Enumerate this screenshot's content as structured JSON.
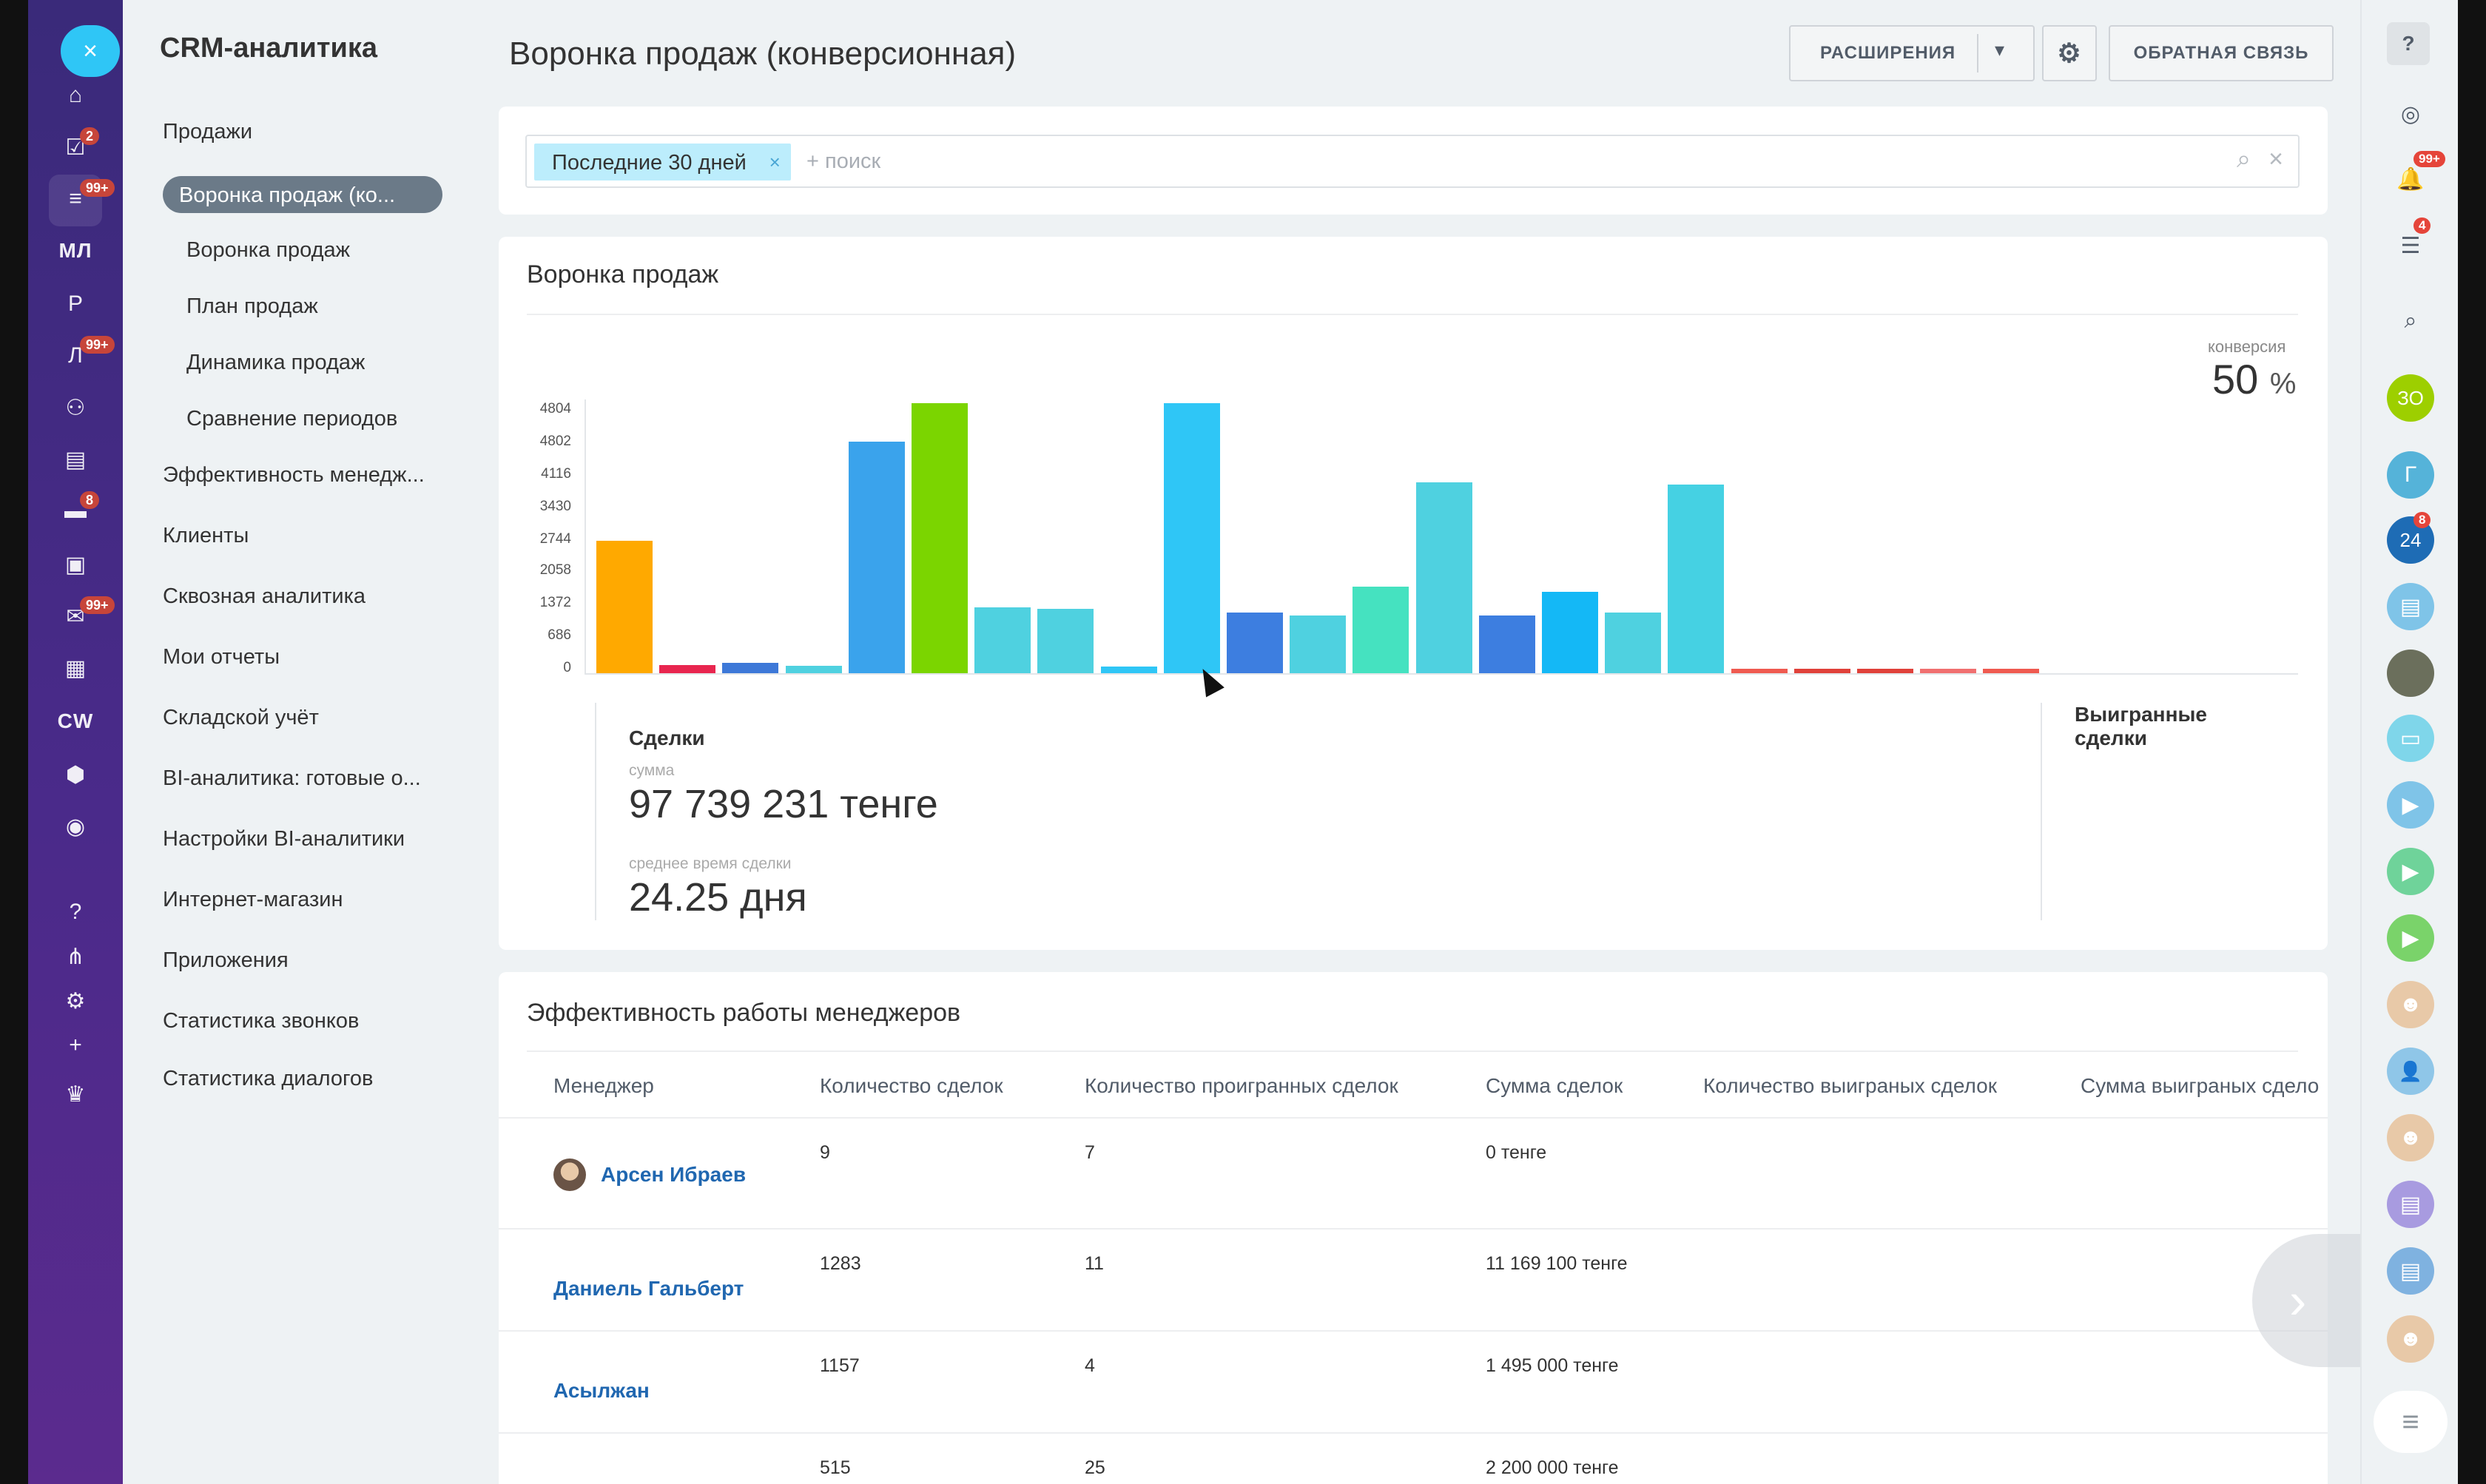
{
  "rail": {
    "close_glyph": "×",
    "items": [
      {
        "name": "home-icon",
        "glyph": "⌂",
        "badge": ""
      },
      {
        "name": "tasks-icon",
        "glyph": "☑",
        "badge": "2"
      },
      {
        "name": "crm-filter-icon",
        "glyph": "≡",
        "badge": "99+"
      },
      {
        "name": "ml-label",
        "glyph": "МЛ",
        "badge": ""
      },
      {
        "name": "r-label",
        "glyph": "Р",
        "badge": ""
      },
      {
        "name": "l-label",
        "glyph": "Л",
        "badge": "99+"
      },
      {
        "name": "crm-icon",
        "glyph": "⚇",
        "badge": ""
      },
      {
        "name": "feed-icon",
        "glyph": "▤",
        "badge": ""
      },
      {
        "name": "chat-icon",
        "glyph": "▬",
        "badge": "8"
      },
      {
        "name": "contact-card-icon",
        "glyph": "▣",
        "badge": ""
      },
      {
        "name": "mail-icon",
        "glyph": "✉",
        "badge": "99+"
      },
      {
        "name": "calendar-icon",
        "glyph": "▦",
        "badge": ""
      },
      {
        "name": "cw-label",
        "glyph": "CW",
        "badge": ""
      },
      {
        "name": "hexagon-icon",
        "glyph": "⬢",
        "badge": ""
      },
      {
        "name": "check-circle-icon",
        "glyph": "◉",
        "badge": ""
      },
      {
        "name": "help-icon",
        "glyph": "?",
        "badge": ""
      },
      {
        "name": "structure-icon",
        "glyph": "⋔",
        "badge": ""
      },
      {
        "name": "settings-icon",
        "glyph": "⚙",
        "badge": ""
      },
      {
        "name": "plus-icon",
        "glyph": "+",
        "badge": ""
      },
      {
        "name": "crown-icon",
        "glyph": "♛",
        "badge": ""
      }
    ]
  },
  "menu": {
    "title": "CRM-аналитика",
    "sales": "Продажи",
    "active": "Воронка продаж (ко...",
    "sub": [
      "Воронка продаж",
      "План продаж",
      "Динамика продаж",
      "Сравнение периодов"
    ],
    "items": [
      "Эффективность менедж...",
      "Клиенты",
      "Сквозная аналитика",
      "Мои отчеты",
      "Складской учёт",
      "BI-аналитика: готовые о...",
      "Настройки BI-аналитики",
      "Интернет-магазин",
      "Приложения",
      "Статистика звонков",
      "Статистика диалогов"
    ]
  },
  "header": {
    "title": "Воронка продаж (конверсионная)",
    "extensions_label": "РАСШИРЕНИЯ",
    "dropdown_glyph": "▾",
    "settings_glyph": "⚙",
    "feedback_label": "ОБРАТНАЯ СВЯЗЬ"
  },
  "filter": {
    "chip_label": "Последние 30 дней",
    "chip_remove": "×",
    "placeholder": "+ поиск",
    "search_glyph": "⌕",
    "clear_glyph": "×"
  },
  "funnel": {
    "title": "Воронка продаж",
    "conversion_label": "конверсия",
    "conversion_value": "50",
    "conversion_unit": "%",
    "deals_label": "Сделки",
    "sum_label": "сумма",
    "sum_value": "97 739 231 тенге",
    "avg_time_label": "среднее время сделки",
    "avg_time_value": "24.25 дня",
    "won_label": "Выигранные сделки"
  },
  "chart_data": {
    "type": "bar",
    "ytick_labels": [
      "4804",
      "4802",
      "4116",
      "3430",
      "2744",
      "2058",
      "1372",
      "686",
      "0"
    ],
    "ylim": [
      0,
      4804
    ],
    "values": [
      2350,
      140,
      180,
      130,
      4120,
      4804,
      1170,
      1150,
      120,
      4804,
      1080,
      1030,
      1540,
      3400,
      1030,
      1450,
      1080,
      3360,
      60,
      50,
      60,
      40,
      60
    ],
    "colors": [
      "#ffa900",
      "#e8264f",
      "#3d78d8",
      "#4fd1e0",
      "#3aa3ec",
      "#7bd500",
      "#4fd1e0",
      "#4fd1e0",
      "#2fc6f6",
      "#2fc6f6",
      "#3d7ee0",
      "#4fd1e0",
      "#45e2c0",
      "#4fd1e0",
      "#3d7ee0",
      "#14b8f6",
      "#4fd1e0",
      "#45d1e3",
      "#ef5a50",
      "#e0413a",
      "#e0413a",
      "#f07070",
      "#ef5a50"
    ]
  },
  "managers": {
    "title": "Эффективность работы менеджеров",
    "columns": [
      "Менеджер",
      "Количество сделок",
      "Количество проигранных сделок",
      "Сумма сделок",
      "Количество выиграных сделок",
      "Сумма выиграных сдело"
    ],
    "rows": [
      {
        "name": "Арсен Ибраев",
        "deals": "9",
        "lost": "7",
        "sum": "0 тенге"
      },
      {
        "name": "Даниель Гальберт",
        "deals": "1283",
        "lost": "11",
        "sum": "11 169 100 тенге"
      },
      {
        "name": "Асылжан",
        "deals": "1157",
        "lost": "4",
        "sum": "1 495 000 тенге"
      },
      {
        "name": "",
        "deals": "515",
        "lost": "25",
        "sum": "2 200 000 тенге"
      }
    ],
    "next_glyph": "›"
  },
  "rpanel": {
    "help_glyph": "?",
    "items": [
      {
        "name": "target-icon",
        "glyph": "◎",
        "badge": "",
        "color": ""
      },
      {
        "name": "bell-icon",
        "glyph": "🔔",
        "badge": "99+",
        "color": ""
      },
      {
        "name": "messages-icon",
        "glyph": "☰",
        "badge": "4",
        "color": ""
      },
      {
        "name": "search-icon",
        "glyph": "⌕",
        "badge": "",
        "color": ""
      },
      {
        "name": "group-zo-avatar",
        "glyph": "ЗО",
        "badge": "",
        "color": "#9dcf00"
      },
      {
        "name": "group-g-avatar",
        "glyph": "Г",
        "badge": "",
        "color": "#55b3d9"
      },
      {
        "name": "bitrix24-icon",
        "glyph": "24",
        "badge": "8",
        "color": "#1e6cb5"
      },
      {
        "name": "contact-card-icon",
        "glyph": "▤",
        "badge": "",
        "color": "#7fc4e8"
      },
      {
        "name": "user-photo-avatar",
        "glyph": "",
        "badge": "",
        "color": "#6b6f5c"
      },
      {
        "name": "open-lines-icon",
        "glyph": "▭",
        "badge": "",
        "color": "#7fd6ea"
      },
      {
        "name": "video-icon",
        "glyph": "▶",
        "badge": "",
        "color": "#7fc4e8"
      },
      {
        "name": "video-icon",
        "glyph": "▶",
        "badge": "",
        "color": "#6fd39a"
      },
      {
        "name": "video-icon",
        "glyph": "▶",
        "badge": "",
        "color": "#7ad36a"
      },
      {
        "name": "group-avatar",
        "glyph": "☻",
        "badge": "",
        "color": "#e8c9a8"
      },
      {
        "name": "user-avatar",
        "glyph": "👤",
        "badge": "",
        "color": "#8fc6e8"
      },
      {
        "name": "group-avatar",
        "glyph": "☻",
        "badge": "",
        "color": "#e8c9a8"
      },
      {
        "name": "contact-card-icon",
        "glyph": "▤",
        "badge": "",
        "color": "#a89be0"
      },
      {
        "name": "contact-card-icon",
        "glyph": "▤",
        "badge": "",
        "color": "#7fb2e0"
      },
      {
        "name": "group-avatar",
        "glyph": "☻",
        "badge": "",
        "color": "#e8c9a8"
      }
    ],
    "list_glyph": "≡"
  }
}
